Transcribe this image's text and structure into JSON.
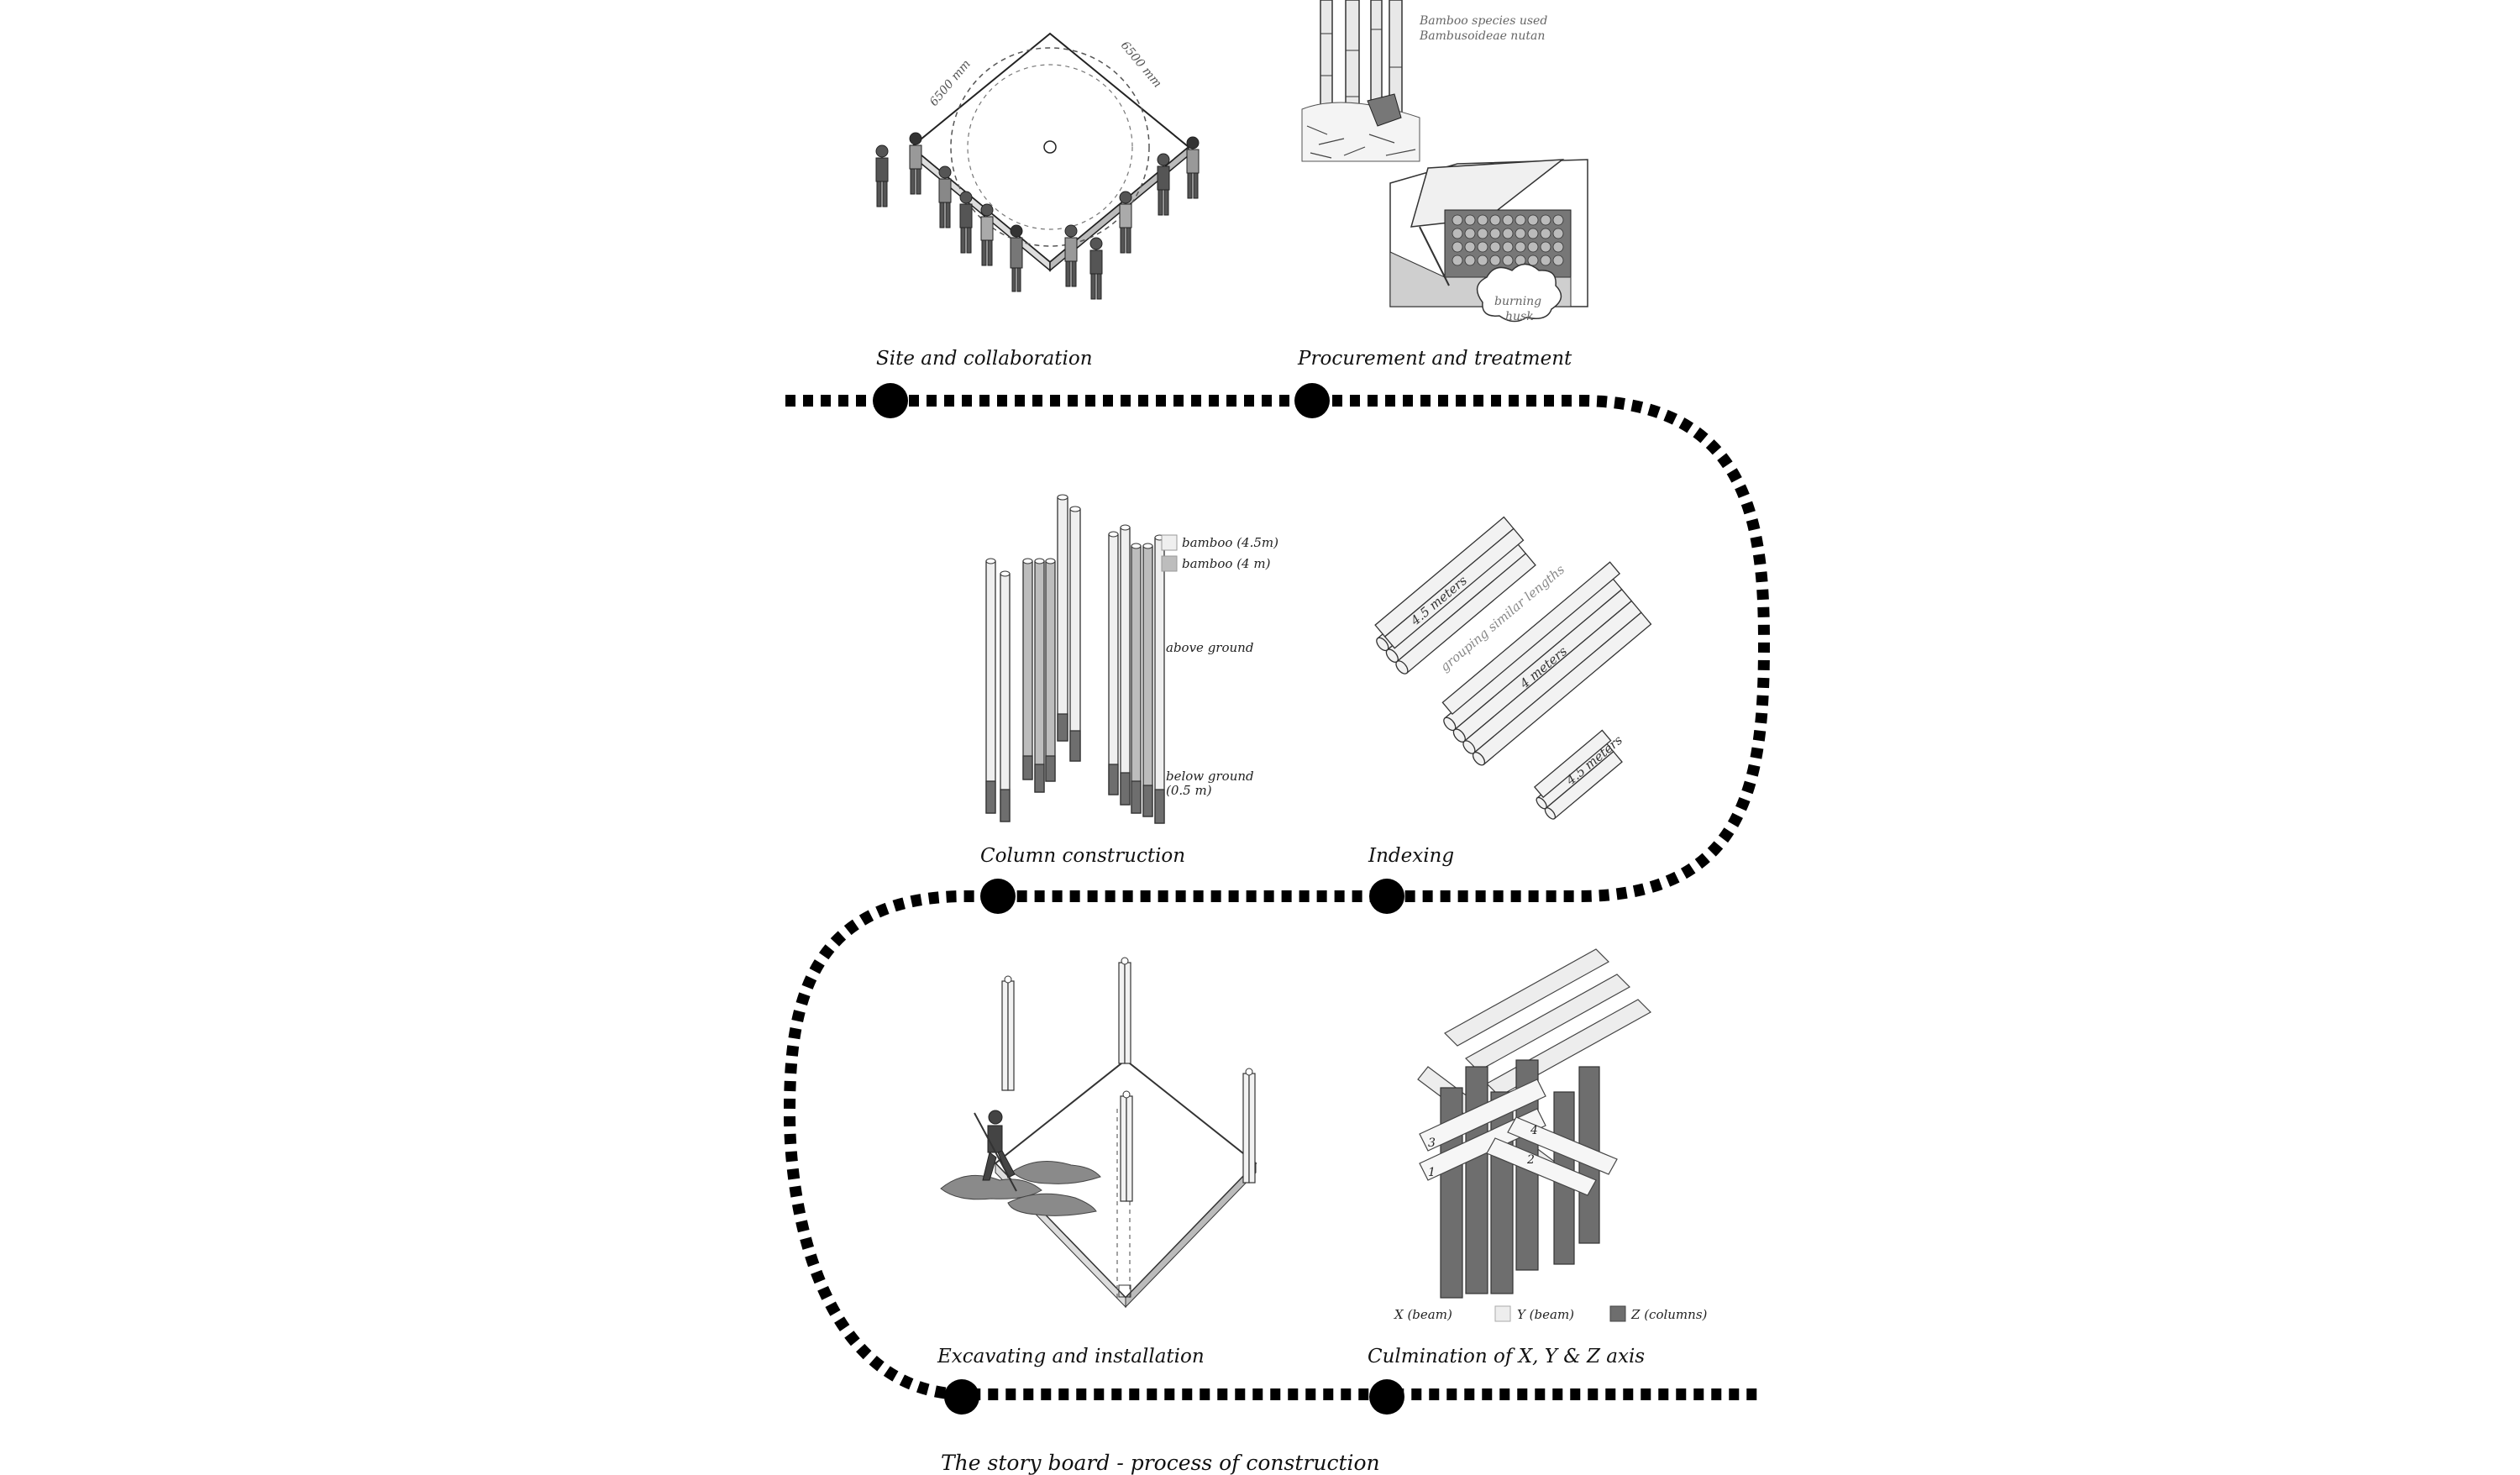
{
  "steps": [
    {
      "label": "Site and collaboration"
    },
    {
      "label": "Procurement and treatment"
    },
    {
      "label": "Column construction"
    },
    {
      "label": "Indexing"
    },
    {
      "label": "Excavating and installation"
    },
    {
      "label": "Culmination of  X, Y & Z axis"
    }
  ],
  "site": {
    "dim_left": "6500 mm",
    "dim_right": "6500 mm"
  },
  "procurement": {
    "species_line1": "Bamboo species used",
    "species_line2": "Bambusoideae nutan",
    "burning_line1": "burning",
    "burning_line2": "husk"
  },
  "columns": {
    "legend_1": "bamboo (4.5m)",
    "legend_2": "bamboo (4 m)",
    "above": "above ground",
    "below_line1": "below ground",
    "below_line2": "(0.5 m)"
  },
  "indexing": {
    "group_label": "grouping similar lengths",
    "len_a": "4.5 meters",
    "len_b": "4 meters",
    "len_c": "4.5 meters"
  },
  "culmination": {
    "legend_x": "X (beam)",
    "legend_y": "Y (beam)",
    "legend_z": "Z (columns)",
    "n1": "1",
    "n2": "2",
    "n3": "3",
    "n4": "4"
  },
  "caption": "The story board - process of construction",
  "colors": {
    "path": "#000000",
    "node": "#000000",
    "light_bamboo": "#efefef",
    "mid_bamboo": "#bdbdbd",
    "dark_bamboo": "#6e6e6e"
  }
}
